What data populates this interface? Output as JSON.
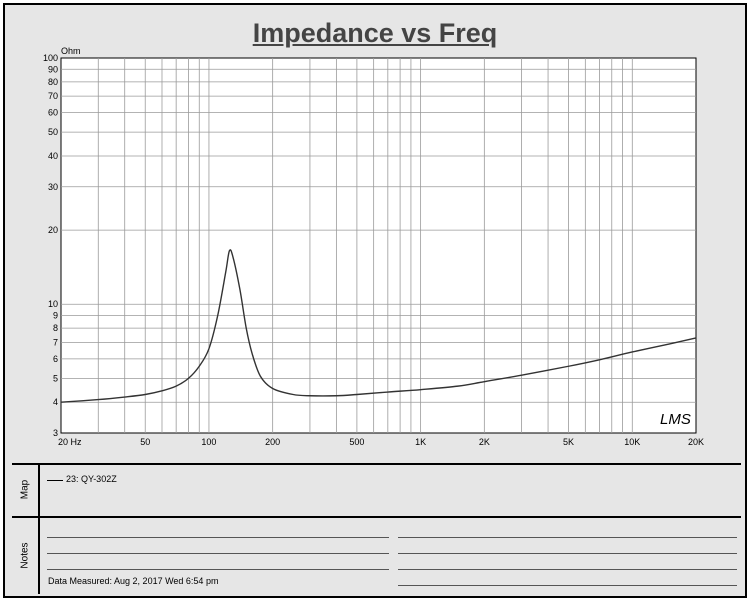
{
  "chart_data": {
    "type": "line",
    "title": "Impedance vs Freq",
    "ylabel": "Ohm",
    "xscale": "log",
    "yscale": "log",
    "xlim": [
      20,
      20000
    ],
    "ylim": [
      3,
      100
    ],
    "grid": true,
    "x_tick_labels": [
      "20 Hz",
      "50",
      "100",
      "200",
      "500",
      "1K",
      "2K",
      "5K",
      "10K",
      "20K"
    ],
    "y_tick_labels": [
      "3",
      "4",
      "5",
      "6",
      "7",
      "8",
      "9",
      "10",
      "20",
      "30",
      "40",
      "50",
      "60",
      "70",
      "80",
      "90",
      "100"
    ],
    "series": [
      {
        "name": "23: QY-302Z",
        "color": "#333333",
        "x": [
          20,
          30,
          40,
          50,
          60,
          70,
          80,
          90,
          100,
          110,
          120,
          125,
          130,
          140,
          150,
          160,
          175,
          200,
          250,
          300,
          400,
          500,
          700,
          1000,
          1500,
          2000,
          3000,
          5000,
          7000,
          10000,
          15000,
          20000
        ],
        "y": [
          4.0,
          4.1,
          4.2,
          4.3,
          4.45,
          4.65,
          5.0,
          5.6,
          6.6,
          9.0,
          13.5,
          16.5,
          15.5,
          11.5,
          8.0,
          6.3,
          5.1,
          4.55,
          4.3,
          4.25,
          4.25,
          4.3,
          4.4,
          4.5,
          4.65,
          4.85,
          5.15,
          5.6,
          5.95,
          6.4,
          6.9,
          7.3
        ]
      }
    ]
  },
  "map": {
    "label": "Map",
    "legend_entry": "23: QY-302Z"
  },
  "notes": {
    "label": "Notes",
    "measured": "Data Measured: Aug  2, 2017  Wed  6:54 pm"
  },
  "logo": "LMS",
  "colors": {
    "frame": "#000000",
    "panel": "#e6e6e6",
    "plot_bg": "#ffffff",
    "grid": "#9a9a9a",
    "curve": "#333333"
  }
}
